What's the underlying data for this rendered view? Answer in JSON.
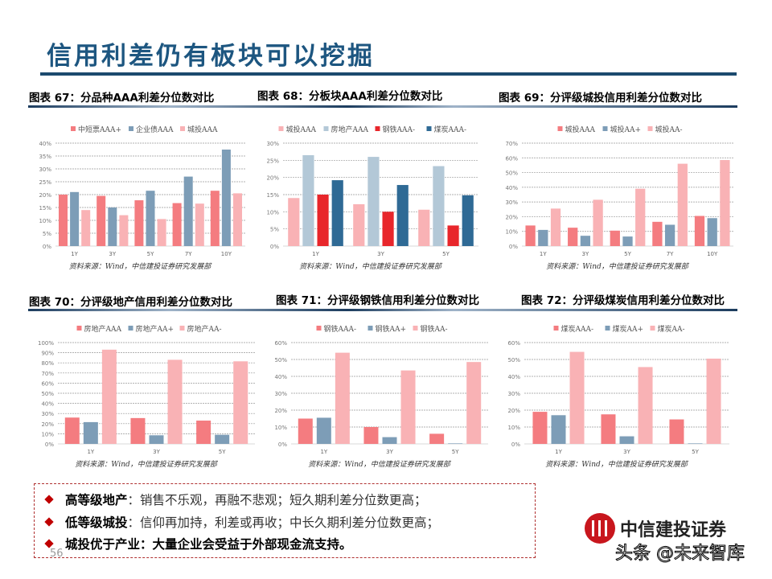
{
  "title": "信用利差仍有板块可以挖掘",
  "colors": {
    "title": "#1d5680",
    "red": "#f47c80",
    "steel": "#7d9db7",
    "pink": "#f9b2b5",
    "light_blue": "#b3c8d7",
    "bright_red": "#e8262b",
    "navy": "#2f6a95"
  },
  "captions": [
    "图表 67：分品种AAA利差分位数对比",
    "图表 68：分板块AAA利差分位数对比",
    "图表 69：分评级城投信用利差分位数对比",
    "图表 70：分评级地产信用利差分位数对比",
    "图表 71：分评级钢铁信用利差分位数对比",
    "图表 72：分评级煤炭信用利差分位数对比"
  ],
  "chart_data": [
    {
      "type": "bar",
      "categories": [
        "1Y",
        "3Y",
        "5Y",
        "7Y",
        "10Y"
      ],
      "ylim": [
        0,
        40
      ],
      "ystep": 5,
      "grid": true,
      "legend": "top",
      "source": "资料来源：Wind，中信建投证券研究发展部",
      "series": [
        {
          "name": "中短票AAA+",
          "color": "#f47c80",
          "values": [
            20,
            19.5,
            17.8,
            16.7,
            21.5
          ]
        },
        {
          "name": "企业债AAA",
          "color": "#7d9db7",
          "values": [
            21,
            15,
            21.5,
            27,
            37.5
          ]
        },
        {
          "name": "城投AAA",
          "color": "#f9b2b5",
          "values": [
            14,
            12,
            10.5,
            16.5,
            20.5
          ]
        }
      ]
    },
    {
      "type": "bar",
      "categories": [
        "1Y",
        "3Y",
        "5Y"
      ],
      "ylim": [
        0,
        30
      ],
      "ystep": 5,
      "grid": true,
      "legend": "top",
      "source": "资料来源：Wind，中信建投证券研究发展部",
      "series": [
        {
          "name": "城投AAA",
          "color": "#f9b2b5",
          "values": [
            14,
            12.2,
            10.6
          ]
        },
        {
          "name": "房地产AAA",
          "color": "#b3c8d7",
          "values": [
            26.5,
            26,
            23.3
          ]
        },
        {
          "name": "钢铁AAA-",
          "color": "#e8262b",
          "values": [
            15,
            10,
            6
          ]
        },
        {
          "name": "煤炭AAA-",
          "color": "#2f6a95",
          "values": [
            19.2,
            17.8,
            14.8
          ]
        }
      ]
    },
    {
      "type": "bar",
      "categories": [
        "1Y",
        "3Y",
        "5Y",
        "7Y",
        "10Y"
      ],
      "ylim": [
        0,
        70
      ],
      "ystep": 10,
      "grid": true,
      "legend": "top",
      "source": "资料来源：Wind，中信建投证券研究发展部",
      "series": [
        {
          "name": "城投AAA",
          "color": "#f47c80",
          "values": [
            14,
            12.5,
            10.5,
            16.5,
            20.5
          ]
        },
        {
          "name": "城投AA+",
          "color": "#7d9db7",
          "values": [
            11,
            7,
            6.5,
            14.5,
            19
          ]
        },
        {
          "name": "城投AA-",
          "color": "#f9b2b5",
          "values": [
            25.5,
            31.5,
            39,
            56,
            58.5
          ]
        }
      ]
    },
    {
      "type": "bar",
      "categories": [
        "1Y",
        "3Y",
        "5Y"
      ],
      "ylim": [
        0,
        100
      ],
      "ystep": 10,
      "grid": true,
      "legend": "top",
      "source": "资料来源：Wind，中信建投证券研究发展部",
      "series": [
        {
          "name": "房地产AAA",
          "color": "#f47c80",
          "values": [
            26,
            25.5,
            23
          ]
        },
        {
          "name": "房地产AA+",
          "color": "#7d9db7",
          "values": [
            21.5,
            8.5,
            9
          ]
        },
        {
          "name": "房地产AA-",
          "color": "#f9b2b5",
          "values": [
            93,
            83,
            81.5
          ]
        }
      ]
    },
    {
      "type": "bar",
      "categories": [
        "1Y",
        "3Y",
        "5Y"
      ],
      "ylim": [
        0,
        60
      ],
      "ystep": 10,
      "grid": true,
      "legend": "top",
      "source": "资料来源：Wind，中信建投证券研究发展部",
      "series": [
        {
          "name": "钢铁AAA-",
          "color": "#f47c80",
          "values": [
            15,
            10,
            6
          ]
        },
        {
          "name": "钢铁AA+",
          "color": "#7d9db7",
          "values": [
            15.5,
            4,
            0.3
          ]
        },
        {
          "name": "钢铁AA-",
          "color": "#f9b2b5",
          "values": [
            54,
            43.5,
            48.5
          ]
        }
      ]
    },
    {
      "type": "bar",
      "categories": [
        "1Y",
        "3Y",
        "5Y"
      ],
      "ylim": [
        0,
        60
      ],
      "ystep": 10,
      "grid": true,
      "legend": "top",
      "source": "资料来源：Wind，中信建投证券研究发展部",
      "series": [
        {
          "name": "煤炭AAA-",
          "color": "#f47c80",
          "values": [
            19,
            17.5,
            14.5
          ]
        },
        {
          "name": "煤炭AA+",
          "color": "#7d9db7",
          "values": [
            17,
            4.5,
            0.3
          ]
        },
        {
          "name": "煤炭AA-",
          "color": "#f9b2b5",
          "values": [
            54.5,
            45.5,
            50.5
          ]
        }
      ]
    }
  ],
  "bullets": [
    {
      "bold": "高等级地产",
      "text": "：销售不乐观，再融不悲观；短久期利差分位数更高；"
    },
    {
      "bold": "低等级城投",
      "text": "：信仰再加持，利差或再收；中长久期利差分位数更高；"
    },
    {
      "bold": "城投优于产业：大量企业会受益于外部现金流支持。",
      "text": ""
    }
  ],
  "page_number": "56",
  "logo_text": "中信建投证券",
  "watermark": "头条 @未来智库"
}
